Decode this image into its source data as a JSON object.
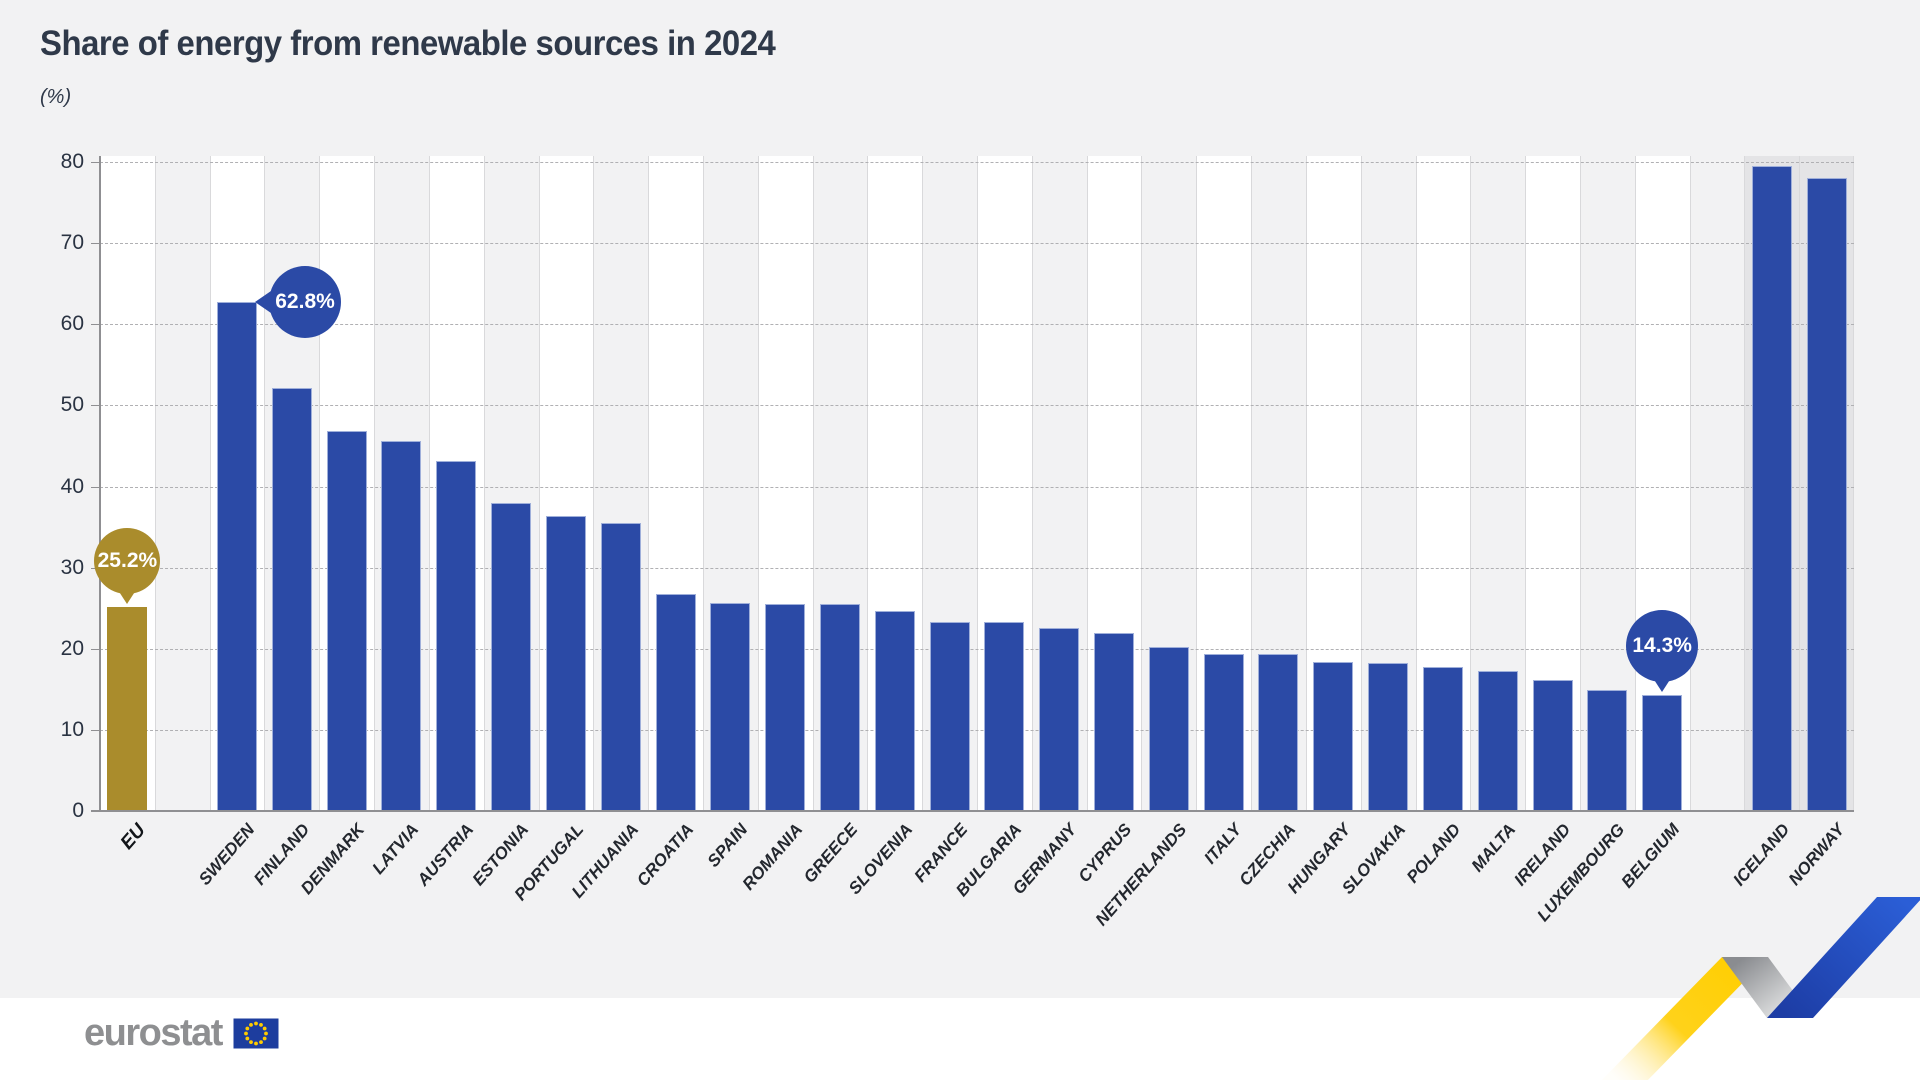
{
  "title": "Share of energy from renewable sources in 2024",
  "unit_label": "(%)",
  "footer": {
    "brand": "eurostat"
  },
  "colors": {
    "panel_bg": "#f2f2f3",
    "bar_blue": "#2b4aa6",
    "bar_gold": "#aa8c2c",
    "bar_border": "#9fafda",
    "column_white": "#ffffff",
    "column_alt": "#f2f2f3",
    "column_shaded": "#e4e4e6",
    "grid_dash": "#b0b0b3",
    "grid_vertical": "#d9d9db",
    "axis": "#8f8f92",
    "title_text": "#2f3949",
    "tick_text": "#2a3342",
    "label_text": "#23272e",
    "callout_text": "#ffffff",
    "logo_text": "#8e8f91",
    "flag_blue": "#1d3d9e",
    "flag_stars": "#ffcc00"
  },
  "chart_data": {
    "type": "bar",
    "title": "Share of energy from renewable sources in 2024",
    "ylabel": "(%)",
    "ylim": [
      0,
      80
    ],
    "yticks": [
      0,
      10,
      20,
      30,
      40,
      50,
      60,
      70,
      80
    ],
    "grid": "horizontal-dashed",
    "legend": "none",
    "columns": [
      {
        "type": "bar",
        "label": "EU",
        "value": 25.2,
        "band": "white",
        "color": "gold",
        "bold": true,
        "callout": {
          "text": "25.2%",
          "side": "top",
          "color": "gold"
        }
      },
      {
        "type": "gap",
        "band": "alt"
      },
      {
        "type": "bar",
        "label": "SWEDEN",
        "value": 62.8,
        "band": "white",
        "color": "blue",
        "callout": {
          "text": "62.8%",
          "side": "right",
          "color": "blue"
        }
      },
      {
        "type": "bar",
        "label": "FINLAND",
        "value": 52.2,
        "band": "alt",
        "color": "blue"
      },
      {
        "type": "bar",
        "label": "DENMARK",
        "value": 46.8,
        "band": "white",
        "color": "blue"
      },
      {
        "type": "bar",
        "label": "LATVIA",
        "value": 45.6,
        "band": "alt",
        "color": "blue"
      },
      {
        "type": "bar",
        "label": "AUSTRIA",
        "value": 43.1,
        "band": "white",
        "color": "blue"
      },
      {
        "type": "bar",
        "label": "ESTONIA",
        "value": 38.0,
        "band": "alt",
        "color": "blue"
      },
      {
        "type": "bar",
        "label": "PORTUGAL",
        "value": 36.4,
        "band": "white",
        "color": "blue"
      },
      {
        "type": "bar",
        "label": "LITHUANIA",
        "value": 35.5,
        "band": "alt",
        "color": "blue"
      },
      {
        "type": "bar",
        "label": "CROATIA",
        "value": 26.8,
        "band": "white",
        "color": "blue"
      },
      {
        "type": "bar",
        "label": "SPAIN",
        "value": 25.6,
        "band": "alt",
        "color": "blue"
      },
      {
        "type": "bar",
        "label": "ROMANIA",
        "value": 25.5,
        "band": "white",
        "color": "blue"
      },
      {
        "type": "bar",
        "label": "GREECE",
        "value": 25.5,
        "band": "alt",
        "color": "blue"
      },
      {
        "type": "bar",
        "label": "SLOVENIA",
        "value": 24.7,
        "band": "white",
        "color": "blue"
      },
      {
        "type": "bar",
        "label": "FRANCE",
        "value": 23.3,
        "band": "alt",
        "color": "blue"
      },
      {
        "type": "bar",
        "label": "BULGARIA",
        "value": 23.3,
        "band": "white",
        "color": "blue"
      },
      {
        "type": "bar",
        "label": "GERMANY",
        "value": 22.5,
        "band": "alt",
        "color": "blue"
      },
      {
        "type": "bar",
        "label": "CYPRUS",
        "value": 21.9,
        "band": "white",
        "color": "blue"
      },
      {
        "type": "bar",
        "label": "NETHERLANDS",
        "value": 20.2,
        "band": "alt",
        "color": "blue"
      },
      {
        "type": "bar",
        "label": "ITALY",
        "value": 19.4,
        "band": "white",
        "color": "blue"
      },
      {
        "type": "bar",
        "label": "CZECHIA",
        "value": 19.3,
        "band": "alt",
        "color": "blue"
      },
      {
        "type": "bar",
        "label": "HUNGARY",
        "value": 18.4,
        "band": "white",
        "color": "blue"
      },
      {
        "type": "bar",
        "label": "SLOVAKIA",
        "value": 18.2,
        "band": "alt",
        "color": "blue"
      },
      {
        "type": "bar",
        "label": "POLAND",
        "value": 17.8,
        "band": "white",
        "color": "blue"
      },
      {
        "type": "bar",
        "label": "MALTA",
        "value": 17.2,
        "band": "alt",
        "color": "blue"
      },
      {
        "type": "bar",
        "label": "IRELAND",
        "value": 16.1,
        "band": "white",
        "color": "blue"
      },
      {
        "type": "bar",
        "label": "LUXEMBOURG",
        "value": 14.9,
        "band": "alt",
        "color": "blue"
      },
      {
        "type": "bar",
        "label": "BELGIUM",
        "value": 14.3,
        "band": "white",
        "color": "blue",
        "callout": {
          "text": "14.3%",
          "side": "top",
          "color": "blue"
        }
      },
      {
        "type": "gap",
        "band": "alt"
      },
      {
        "type": "bar",
        "label": "ICELAND",
        "value": 79.5,
        "band": "shaded",
        "color": "blue"
      },
      {
        "type": "bar",
        "label": "NORWAY",
        "value": 78.0,
        "band": "shaded",
        "color": "blue"
      }
    ]
  }
}
